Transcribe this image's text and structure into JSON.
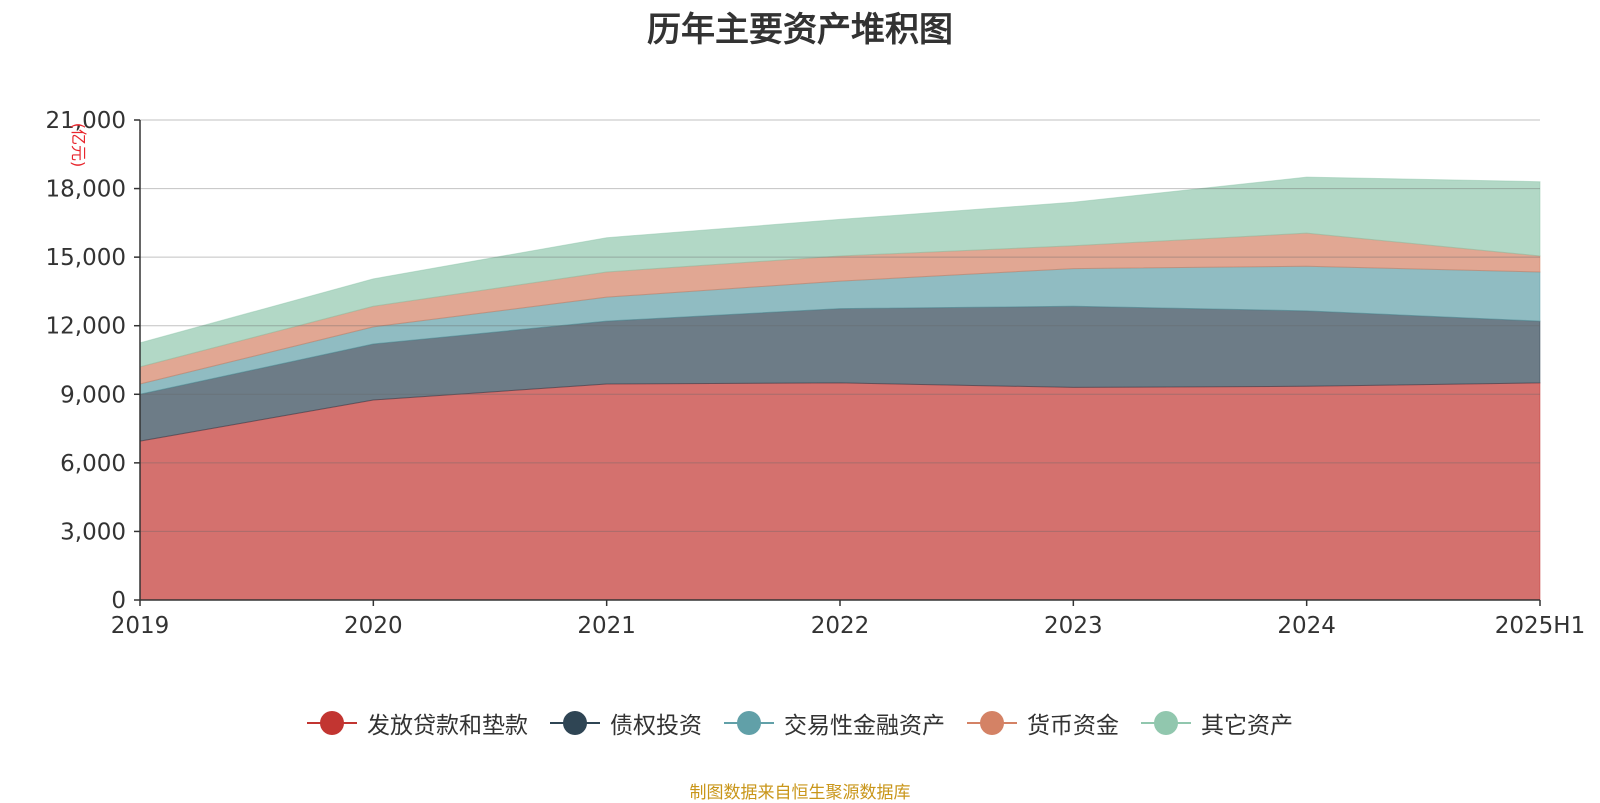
{
  "title": "历年主要资产堆积图",
  "source_note": "制图数据来自恒生聚源数据库",
  "chart_data": {
    "type": "area",
    "stacked": true,
    "title": "历年主要资产堆积图",
    "ylabel": "(亿元)",
    "xlabel": "",
    "categories": [
      "2019",
      "2020",
      "2021",
      "2022",
      "2023",
      "2024",
      "2025H1"
    ],
    "ylim": [
      0,
      21000
    ],
    "yticks": [
      0,
      3000,
      6000,
      9000,
      12000,
      15000,
      18000,
      21000
    ],
    "ytick_labels": [
      "0",
      "3,000",
      "6,000",
      "9,000",
      "12,000",
      "15,000",
      "18,000",
      "21,000"
    ],
    "grid": true,
    "legend_position": "bottom",
    "series": [
      {
        "name": "发放贷款和垫款",
        "color": "#c23531",
        "values": [
          6950,
          8750,
          9450,
          9500,
          9300,
          9350,
          9500
        ]
      },
      {
        "name": "债权投资",
        "color": "#2f4554",
        "values": [
          2050,
          2450,
          2750,
          3250,
          3550,
          3300,
          2700
        ]
      },
      {
        "name": "交易性金融资产",
        "color": "#61a0a8",
        "values": [
          450,
          750,
          1050,
          1200,
          1650,
          1950,
          2150
        ]
      },
      {
        "name": "货币资金",
        "color": "#d48265",
        "values": [
          750,
          900,
          1100,
          1100,
          1000,
          1450,
          700
        ]
      },
      {
        "name": "其它资产",
        "color": "#91c7ae",
        "values": [
          1050,
          1200,
          1500,
          1600,
          1900,
          2450,
          3250
        ]
      }
    ]
  }
}
